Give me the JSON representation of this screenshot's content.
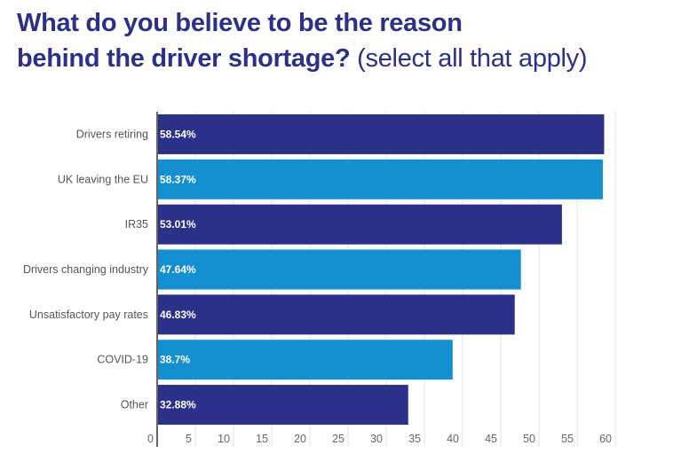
{
  "title_line1": "What do you believe to be the reason",
  "title_line2_bold": "behind the driver shortage?",
  "title_line2_light": "(select all that apply)",
  "chart_data": {
    "type": "bar",
    "orientation": "horizontal",
    "title": "What do you believe to be the reason behind the driver shortage? (select all that apply)",
    "categories": [
      "Drivers retiring",
      "UK leaving the EU",
      "IR35",
      "Drivers changing industry",
      "Unsatisfactory pay rates",
      "COVID-19",
      "Other"
    ],
    "values": [
      58.54,
      58.37,
      53.01,
      47.64,
      46.83,
      38.7,
      32.88
    ],
    "data_labels": [
      "58.54%",
      "58.37%",
      "53.01%",
      "47.64%",
      "46.83%",
      "38.7%",
      "32.88%"
    ],
    "bar_colors": [
      "#2b3088",
      "#1490d2",
      "#2b3088",
      "#1490d2",
      "#2b3088",
      "#1490d2",
      "#2b3088"
    ],
    "xlim": [
      0,
      60
    ],
    "xticks": [
      0,
      5,
      10,
      15,
      20,
      25,
      30,
      35,
      40,
      45,
      50,
      55,
      60
    ],
    "grid": true,
    "xlabel": "",
    "ylabel": ""
  }
}
